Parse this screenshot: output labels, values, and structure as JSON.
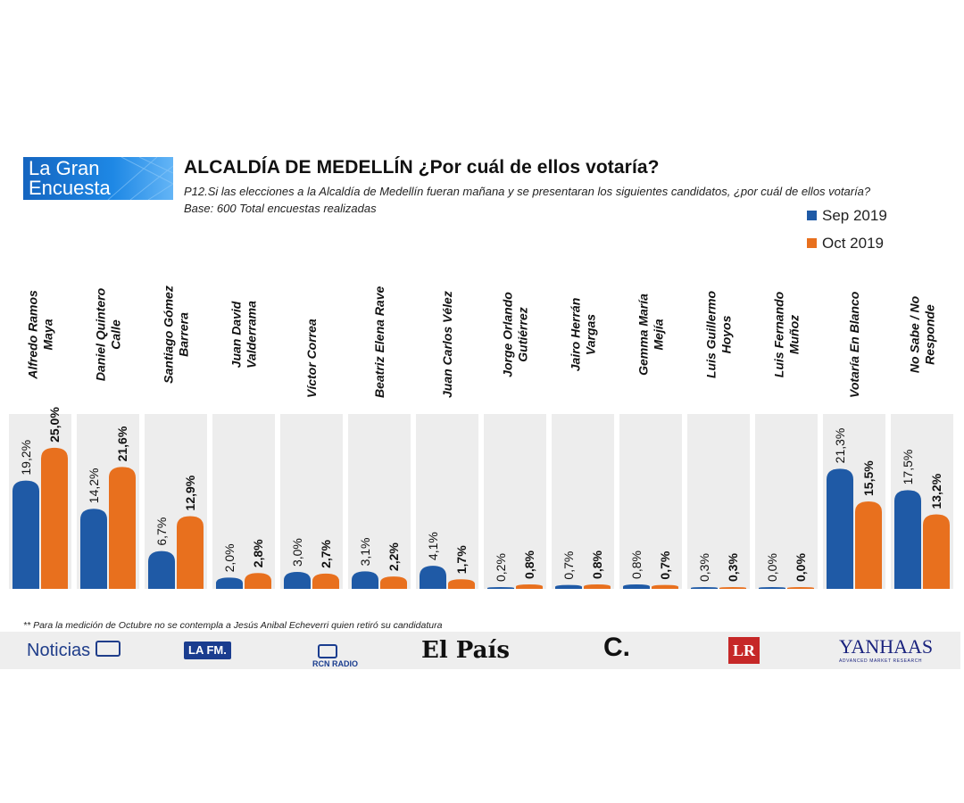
{
  "header": {
    "brand_line1": "La Gran",
    "brand_line2": "Encuesta",
    "title": "ALCALDÍA DE MEDELLÍN ¿Por cuál de ellos votaría?",
    "subtitle": "P12.Si las elecciones a la Alcaldía de Medellín fueran mañana y se presentaran los siguientes candidatos, ¿por cuál de ellos votaría?",
    "base": "Base: 600 Total encuestas realizadas"
  },
  "colors": {
    "sep": "#1f5aa6",
    "oct": "#e8701e",
    "panel": "#ededed"
  },
  "chart_data": {
    "type": "bar",
    "title": "ALCALDÍA DE MEDELLÍN ¿Por cuál de ellos votaría?",
    "xlabel": "",
    "ylabel": "",
    "ylim": [
      0,
      31
    ],
    "grid": false,
    "legend": "top-right",
    "categories": [
      [
        "Alfredo Ramos",
        "Maya"
      ],
      [
        "Daniel Quintero",
        "Calle"
      ],
      [
        "Santiago Gómez",
        "Barrera"
      ],
      [
        "Juan David",
        "Valderrama"
      ],
      [
        "Víctor Correa"
      ],
      [
        "Beatriz Elena Rave"
      ],
      [
        "Juan Carlos Vélez"
      ],
      [
        "Jorge Orlando",
        "Gutiérrez"
      ],
      [
        "Jairo Herrán",
        "Vargas"
      ],
      [
        "Gemma María",
        "Mejía"
      ],
      [
        "Luis Guillermo",
        "Hoyos"
      ],
      [
        "Luis Fernando",
        "Muñoz"
      ],
      [
        "Votaría En Blanco"
      ],
      [
        "No Sabe / No",
        "Responde"
      ]
    ],
    "series": [
      {
        "name": "Sep 2019",
        "values": [
          19.2,
          14.2,
          6.7,
          2.0,
          3.0,
          3.1,
          4.1,
          0.2,
          0.7,
          0.8,
          0.3,
          0.0,
          21.3,
          17.5
        ],
        "labels": [
          "19,2%",
          "14,2%",
          "6,7%",
          "2,0%",
          "3,0%",
          "3,1%",
          "4,1%",
          "0,2%",
          "0,7%",
          "0,8%",
          "0,3%",
          "0,0%",
          "21,3%",
          "17,5%"
        ]
      },
      {
        "name": "Oct 2019",
        "values": [
          25.0,
          21.6,
          12.9,
          2.8,
          2.7,
          2.2,
          1.7,
          0.8,
          0.8,
          0.7,
          0.3,
          0.0,
          15.5,
          13.2
        ],
        "labels": [
          "25,0%",
          "21,6%",
          "12,9%",
          "2,8%",
          "2,7%",
          "2,2%",
          "1,7%",
          "0,8%",
          "0,8%",
          "0,7%",
          "0,3%",
          "0,0%",
          "15,5%",
          "13,2%"
        ]
      }
    ]
  },
  "footnote": "** Para la medición de Octubre no se contempla a Jesús Anibal  Echeverri quien retiró su candidatura",
  "sponsors": {
    "noticias": "Noticias",
    "lafm": "LA FM.",
    "rcn_radio": "RCN RADIO",
    "el_pais": "El País",
    "el_colombiano": "C.",
    "la_republica": "LR",
    "yanhaas": "YANHAAS",
    "yanhaas_tagline": "ADVANCED MARKET RESEARCH"
  }
}
